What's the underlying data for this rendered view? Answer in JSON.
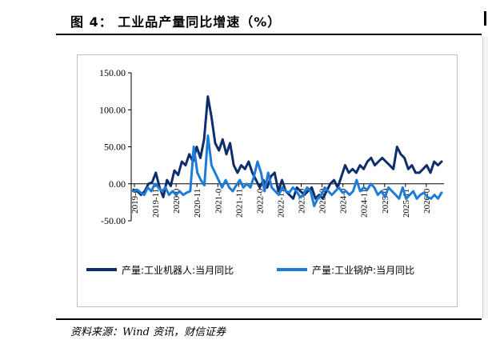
{
  "figure": {
    "title": "图 4：  工业品产量同比增速（%）",
    "source": "资料来源：Wind 资讯，财信证券"
  },
  "chart_data": {
    "type": "line",
    "y_ticks": [
      "150.00",
      "100.00",
      "50.00",
      "0.00",
      "-50.00"
    ],
    "ylim": [
      -50,
      150
    ],
    "x_ticks": [
      "2019-0",
      "2019-11",
      "2020-0",
      "2020-11",
      "2021-0",
      "2021-11",
      "2022-0",
      "2022-11",
      "2023-0",
      "2023-0",
      "2024-0",
      "2024-11",
      "2025-0",
      "2025-11",
      "2026-0"
    ],
    "grid": false,
    "legend_position": "bottom",
    "series": [
      {
        "name": "产量:工业机器人:当月同比",
        "color": "#0d2d6b",
        "values": [
          -8,
          -10,
          -15,
          -10,
          0,
          2,
          15,
          -5,
          -18,
          5,
          -3,
          18,
          12,
          30,
          25,
          40,
          30,
          50,
          35,
          60,
          118,
          90,
          55,
          45,
          60,
          40,
          55,
          25,
          15,
          25,
          20,
          30,
          15,
          5,
          -5,
          5,
          -5,
          10,
          15,
          -10,
          5,
          -10,
          -15,
          -20,
          -5,
          -10,
          -15,
          -10,
          -5,
          -20,
          -15,
          -20,
          -10,
          0,
          5,
          -5,
          10,
          25,
          15,
          20,
          15,
          25,
          20,
          30,
          35,
          25,
          30,
          35,
          30,
          25,
          20,
          50,
          40,
          35,
          20,
          25,
          15,
          15,
          20,
          25,
          15,
          30,
          25,
          30
        ]
      },
      {
        "name": "产量:工业锅炉:当月同比",
        "color": "#1e7bd6",
        "values": [
          -10,
          -8,
          -12,
          -15,
          -5,
          -10,
          0,
          -5,
          -10,
          -5,
          -15,
          -10,
          -15,
          -10,
          -15,
          -12,
          -10,
          50,
          15,
          5,
          -2,
          65,
          25,
          15,
          5,
          -5,
          5,
          -5,
          -10,
          -2,
          5,
          -5,
          0,
          -5,
          10,
          30,
          15,
          -10,
          15,
          -5,
          -10,
          -15,
          -5,
          -10,
          -12,
          -5,
          -10,
          -18,
          -15,
          -5,
          -10,
          -30,
          -20,
          -15,
          -5,
          -10,
          -15,
          -10,
          -5,
          -12,
          -10,
          -15,
          -10,
          5,
          -10,
          -5,
          -8,
          0,
          -5,
          -15,
          -10,
          -18,
          -5,
          -10,
          -15,
          -20,
          -5,
          -20,
          -15,
          -10,
          -20,
          -15,
          -12,
          -18,
          -20,
          -15,
          -20,
          -12
        ]
      }
    ]
  }
}
